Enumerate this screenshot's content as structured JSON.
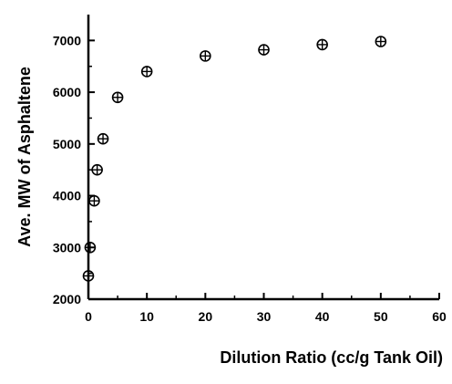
{
  "chart_data": {
    "type": "scatter",
    "xlabel": "Dilution Ratio (cc/g Tank Oil)",
    "ylabel": "Ave. MW of Asphaltene",
    "xlim": [
      0,
      60
    ],
    "ylim": [
      2000,
      7500
    ],
    "xticks": [
      0,
      10,
      20,
      30,
      40,
      50,
      60
    ],
    "yticks": [
      2000,
      3000,
      4000,
      5000,
      6000,
      7000
    ],
    "grid": false,
    "marker": "circle-cross",
    "series": [
      {
        "x": [
          0,
          0.3,
          1.0,
          1.5,
          2.5,
          5,
          10,
          20,
          30,
          40,
          50
        ],
        "y": [
          2450,
          3000,
          3900,
          4500,
          5100,
          5900,
          6400,
          6700,
          6820,
          6920,
          6980
        ]
      }
    ]
  }
}
